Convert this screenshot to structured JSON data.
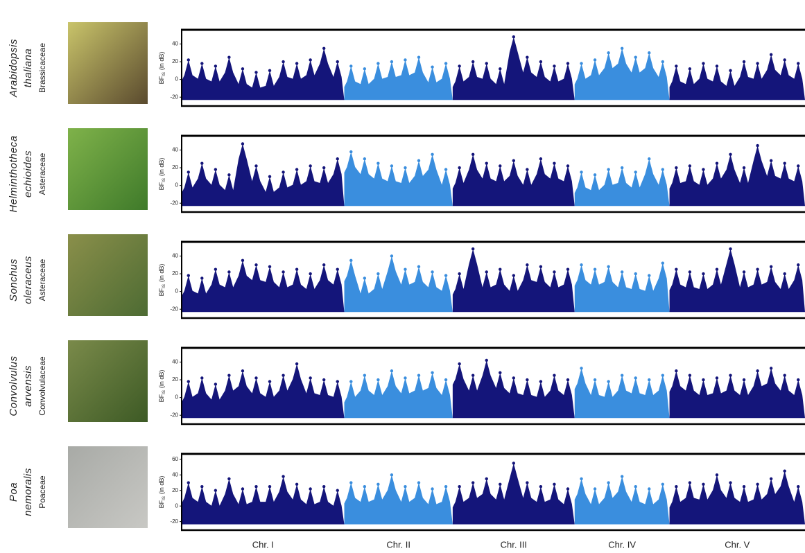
{
  "chromosomes": [
    "Chr. I",
    "Chr. II",
    "Chr. III",
    "Chr. IV",
    "Chr. V"
  ],
  "chart_data": [
    {
      "type": "scatter",
      "title": [
        "Arabidopsis",
        "thaliana"
      ],
      "subtitle": "Brassicaceae",
      "y_label": "BF",
      "y_label_sub": "IS",
      "y_label_unit": "(in dB)",
      "ylim": [
        -30,
        56
      ],
      "yticks": [
        -20,
        0,
        20,
        40
      ],
      "series": [
        {
          "color": "#14157a",
          "values": [
            22,
            18,
            15,
            25,
            12,
            8,
            10,
            20,
            18,
            22,
            35,
            20
          ]
        },
        {
          "color": "#3a8ede",
          "values": [
            15,
            12,
            18,
            20,
            22,
            25,
            14,
            18
          ]
        },
        {
          "color": "#14157a",
          "values": [
            15,
            20,
            18,
            12,
            48,
            25,
            20,
            15,
            18
          ]
        },
        {
          "color": "#3a8ede",
          "values": [
            18,
            22,
            30,
            35,
            25,
            30,
            20
          ]
        },
        {
          "color": "#14157a",
          "values": [
            15,
            12,
            18,
            15,
            10,
            20,
            18,
            28,
            22,
            18
          ]
        }
      ]
    },
    {
      "type": "scatter",
      "title": [
        "Helminthotheca",
        "echioides"
      ],
      "subtitle": "Asteraceae",
      "y_label": "BF",
      "y_label_sub": "IS",
      "y_label_unit": "(in dB)",
      "ylim": [
        -30,
        56
      ],
      "yticks": [
        -20,
        0,
        20,
        40
      ],
      "series": [
        {
          "color": "#14157a",
          "values": [
            15,
            25,
            18,
            12,
            47,
            22,
            10,
            15,
            18,
            22,
            20,
            30
          ]
        },
        {
          "color": "#3a8ede",
          "values": [
            38,
            30,
            25,
            22,
            20,
            28,
            35,
            18
          ]
        },
        {
          "color": "#14157a",
          "values": [
            20,
            35,
            25,
            22,
            28,
            18,
            30,
            25,
            22
          ]
        },
        {
          "color": "#3a8ede",
          "values": [
            15,
            12,
            18,
            20,
            15,
            30,
            18
          ]
        },
        {
          "color": "#14157a",
          "values": [
            20,
            22,
            18,
            25,
            35,
            20,
            45,
            28,
            25,
            22
          ]
        }
      ]
    },
    {
      "type": "scatter",
      "title": [
        "Sonchus",
        "oleraceus"
      ],
      "subtitle": "Asteraceae",
      "y_label": "BF",
      "y_label_sub": "IS",
      "y_label_unit": "(in dB)",
      "ylim": [
        -30,
        56
      ],
      "yticks": [
        -20,
        0,
        20,
        40
      ],
      "series": [
        {
          "color": "#14157a",
          "values": [
            18,
            15,
            25,
            22,
            35,
            30,
            28,
            22,
            25,
            20,
            30,
            25
          ]
        },
        {
          "color": "#3a8ede",
          "values": [
            35,
            15,
            20,
            40,
            25,
            28,
            22,
            18
          ]
        },
        {
          "color": "#14157a",
          "values": [
            20,
            48,
            22,
            25,
            18,
            30,
            28,
            22,
            25
          ]
        },
        {
          "color": "#3a8ede",
          "values": [
            30,
            25,
            28,
            22,
            20,
            18,
            32
          ]
        },
        {
          "color": "#14157a",
          "values": [
            25,
            22,
            20,
            25,
            48,
            22,
            25,
            28,
            20,
            30
          ]
        }
      ]
    },
    {
      "type": "scatter",
      "title": [
        "Convolvulus",
        "arvensis"
      ],
      "subtitle": "Convolvulaceae",
      "y_label": "BF",
      "y_label_sub": "IS",
      "y_label_unit": "(in dB)",
      "ylim": [
        -30,
        56
      ],
      "yticks": [
        -20,
        0,
        20,
        40
      ],
      "series": [
        {
          "color": "#14157a",
          "values": [
            18,
            22,
            15,
            25,
            30,
            22,
            18,
            25,
            38,
            22,
            20,
            18
          ]
        },
        {
          "color": "#3a8ede",
          "values": [
            18,
            25,
            20,
            30,
            22,
            25,
            28,
            20
          ]
        },
        {
          "color": "#14157a",
          "values": [
            38,
            25,
            42,
            28,
            22,
            20,
            18,
            25,
            20
          ]
        },
        {
          "color": "#3a8ede",
          "values": [
            33,
            20,
            18,
            25,
            22,
            20,
            25
          ]
        },
        {
          "color": "#14157a",
          "values": [
            30,
            25,
            20,
            22,
            25,
            20,
            30,
            33,
            25,
            20
          ]
        }
      ]
    },
    {
      "type": "scatter",
      "title": [
        "Poa",
        "nemoralis"
      ],
      "subtitle": "Poaceae",
      "y_label": "BF",
      "y_label_sub": "IS",
      "y_label_unit": "(in dB)",
      "ylim": [
        -31,
        67
      ],
      "yticks": [
        -20,
        0,
        20,
        40,
        60
      ],
      "series": [
        {
          "color": "#14157a",
          "values": [
            30,
            25,
            20,
            35,
            22,
            25,
            25,
            38,
            28,
            22,
            25,
            20
          ]
        },
        {
          "color": "#3a8ede",
          "values": [
            30,
            25,
            28,
            40,
            25,
            30,
            22,
            25
          ]
        },
        {
          "color": "#14157a",
          "values": [
            25,
            30,
            35,
            28,
            55,
            30,
            25,
            28,
            22
          ]
        },
        {
          "color": "#3a8ede",
          "values": [
            35,
            22,
            30,
            38,
            25,
            22,
            28
          ]
        },
        {
          "color": "#14157a",
          "values": [
            25,
            30,
            28,
            40,
            30,
            25,
            28,
            35,
            45,
            25
          ]
        }
      ]
    }
  ]
}
